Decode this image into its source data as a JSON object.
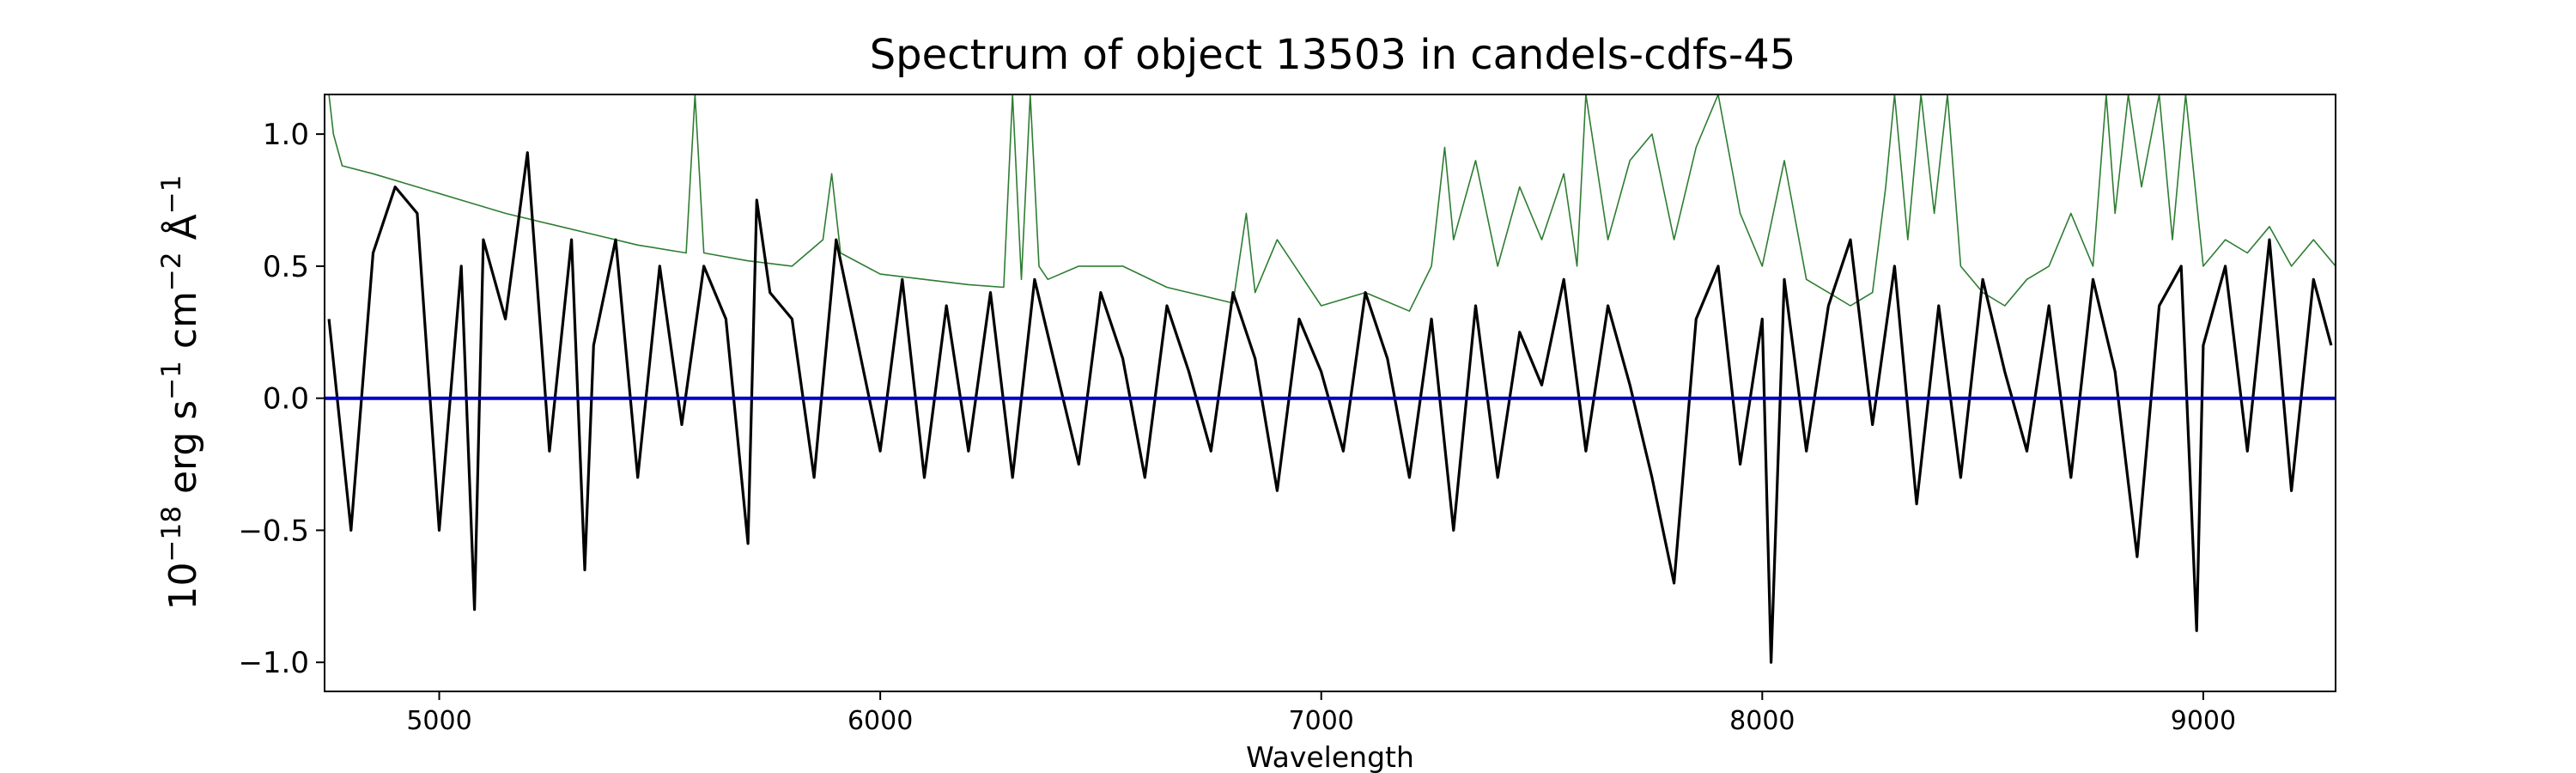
{
  "chart_data": {
    "type": "line",
    "title": "Spectrum of object 13503 in candels-cdfs-45",
    "xlabel": "Wavelength",
    "ylabel_base": "10",
    "ylabel_exp": "−18",
    "ylabel_erg": " erg s",
    "ylabel_s_exp": "−1",
    "ylabel_cm": " cm",
    "ylabel_cm_exp": "−2",
    "ylabel_ang": " Å",
    "ylabel_ang_exp": "−1",
    "xlim": [
      4740,
      9300
    ],
    "ylim": [
      -1.11,
      1.15
    ],
    "xticks": [
      5000,
      6000,
      7000,
      8000,
      9000
    ],
    "xtick_labels": [
      "5000",
      "6000",
      "7000",
      "8000",
      "9000"
    ],
    "yticks": [
      1.0,
      0.5,
      0.0,
      -0.5,
      -1.0
    ],
    "ytick_labels": [
      "1.0",
      "0.5",
      "0.0",
      "−0.5",
      "−1.0"
    ],
    "grid": false,
    "series": [
      {
        "role": "flux",
        "color": "#000000",
        "x": [
          4750,
          4800,
          4850,
          4900,
          4950,
          5000,
          5050,
          5080,
          5100,
          5150,
          5200,
          5250,
          5300,
          5330,
          5350,
          5400,
          5450,
          5500,
          5550,
          5600,
          5650,
          5700,
          5720,
          5750,
          5800,
          5850,
          5900,
          5950,
          6000,
          6050,
          6100,
          6150,
          6200,
          6250,
          6300,
          6350,
          6400,
          6450,
          6500,
          6550,
          6600,
          6650,
          6700,
          6750,
          6800,
          6850,
          6900,
          6950,
          7000,
          7050,
          7100,
          7150,
          7200,
          7250,
          7300,
          7350,
          7400,
          7450,
          7500,
          7550,
          7600,
          7650,
          7700,
          7750,
          7800,
          7850,
          7900,
          7950,
          8000,
          8020,
          8050,
          8100,
          8150,
          8200,
          8250,
          8300,
          8350,
          8400,
          8450,
          8500,
          8550,
          8600,
          8650,
          8700,
          8750,
          8800,
          8850,
          8900,
          8950,
          8985,
          9000,
          9050,
          9100,
          9150,
          9200,
          9250,
          9290
        ],
        "y": [
          0.3,
          -0.5,
          0.55,
          0.8,
          0.7,
          -0.5,
          0.5,
          -0.8,
          0.6,
          0.3,
          0.93,
          -0.2,
          0.6,
          -0.65,
          0.2,
          0.6,
          -0.3,
          0.5,
          -0.1,
          0.5,
          0.3,
          -0.55,
          0.75,
          0.4,
          0.3,
          -0.3,
          0.6,
          0.2,
          -0.2,
          0.45,
          -0.3,
          0.35,
          -0.2,
          0.4,
          -0.3,
          0.45,
          0.1,
          -0.25,
          0.4,
          0.15,
          -0.3,
          0.35,
          0.1,
          -0.2,
          0.4,
          0.15,
          -0.35,
          0.3,
          0.1,
          -0.2,
          0.4,
          0.15,
          -0.3,
          0.3,
          -0.5,
          0.35,
          -0.3,
          0.25,
          0.05,
          0.45,
          -0.2,
          0.35,
          0.05,
          -0.3,
          -0.7,
          0.3,
          0.5,
          -0.25,
          0.3,
          -1.0,
          0.45,
          -0.2,
          0.35,
          0.6,
          -0.1,
          0.5,
          -0.4,
          0.35,
          -0.3,
          0.45,
          0.1,
          -0.2,
          0.35,
          -0.3,
          0.45,
          0.1,
          -0.6,
          0.35,
          0.5,
          -0.88,
          0.2,
          0.5,
          -0.2,
          0.6,
          -0.35,
          0.45,
          0.2
        ]
      },
      {
        "role": "error",
        "color": "#2e7d32",
        "x": [
          4750,
          4760,
          4780,
          4850,
          4950,
          5050,
          5150,
          5250,
          5350,
          5450,
          5560,
          5580,
          5600,
          5700,
          5800,
          5870,
          5890,
          5910,
          6000,
          6100,
          6200,
          6280,
          6300,
          6320,
          6340,
          6360,
          6380,
          6450,
          6550,
          6650,
          6700,
          6800,
          6830,
          6850,
          6900,
          7000,
          7100,
          7200,
          7250,
          7280,
          7300,
          7350,
          7400,
          7450,
          7500,
          7550,
          7580,
          7600,
          7650,
          7700,
          7750,
          7800,
          7850,
          7900,
          7950,
          8000,
          8050,
          8100,
          8150,
          8200,
          8250,
          8280,
          8300,
          8330,
          8360,
          8390,
          8420,
          8450,
          8500,
          8550,
          8600,
          8650,
          8700,
          8750,
          8780,
          8800,
          8830,
          8860,
          8900,
          8930,
          8960,
          9000,
          9050,
          9100,
          9150,
          9200,
          9250,
          9300
        ],
        "y": [
          1.15,
          1.0,
          0.88,
          0.85,
          0.8,
          0.75,
          0.7,
          0.66,
          0.62,
          0.58,
          0.55,
          1.15,
          0.55,
          0.52,
          0.5,
          0.6,
          0.85,
          0.55,
          0.47,
          0.45,
          0.43,
          0.42,
          1.15,
          0.45,
          1.15,
          0.5,
          0.45,
          0.5,
          0.5,
          0.42,
          0.4,
          0.36,
          0.7,
          0.4,
          0.6,
          0.35,
          0.4,
          0.33,
          0.5,
          0.95,
          0.6,
          0.9,
          0.5,
          0.8,
          0.6,
          0.85,
          0.5,
          1.15,
          0.6,
          0.9,
          1.0,
          0.6,
          0.95,
          1.15,
          0.7,
          0.5,
          0.9,
          0.45,
          0.4,
          0.35,
          0.4,
          0.8,
          1.15,
          0.6,
          1.15,
          0.7,
          1.15,
          0.5,
          0.4,
          0.35,
          0.45,
          0.5,
          0.7,
          0.5,
          1.15,
          0.7,
          1.15,
          0.8,
          1.15,
          0.6,
          1.15,
          0.5,
          0.6,
          0.55,
          0.65,
          0.5,
          0.6,
          0.5
        ]
      },
      {
        "role": "zero",
        "color": "#0000cc",
        "x": [
          4740,
          9300
        ],
        "y": [
          0,
          0
        ]
      }
    ]
  }
}
